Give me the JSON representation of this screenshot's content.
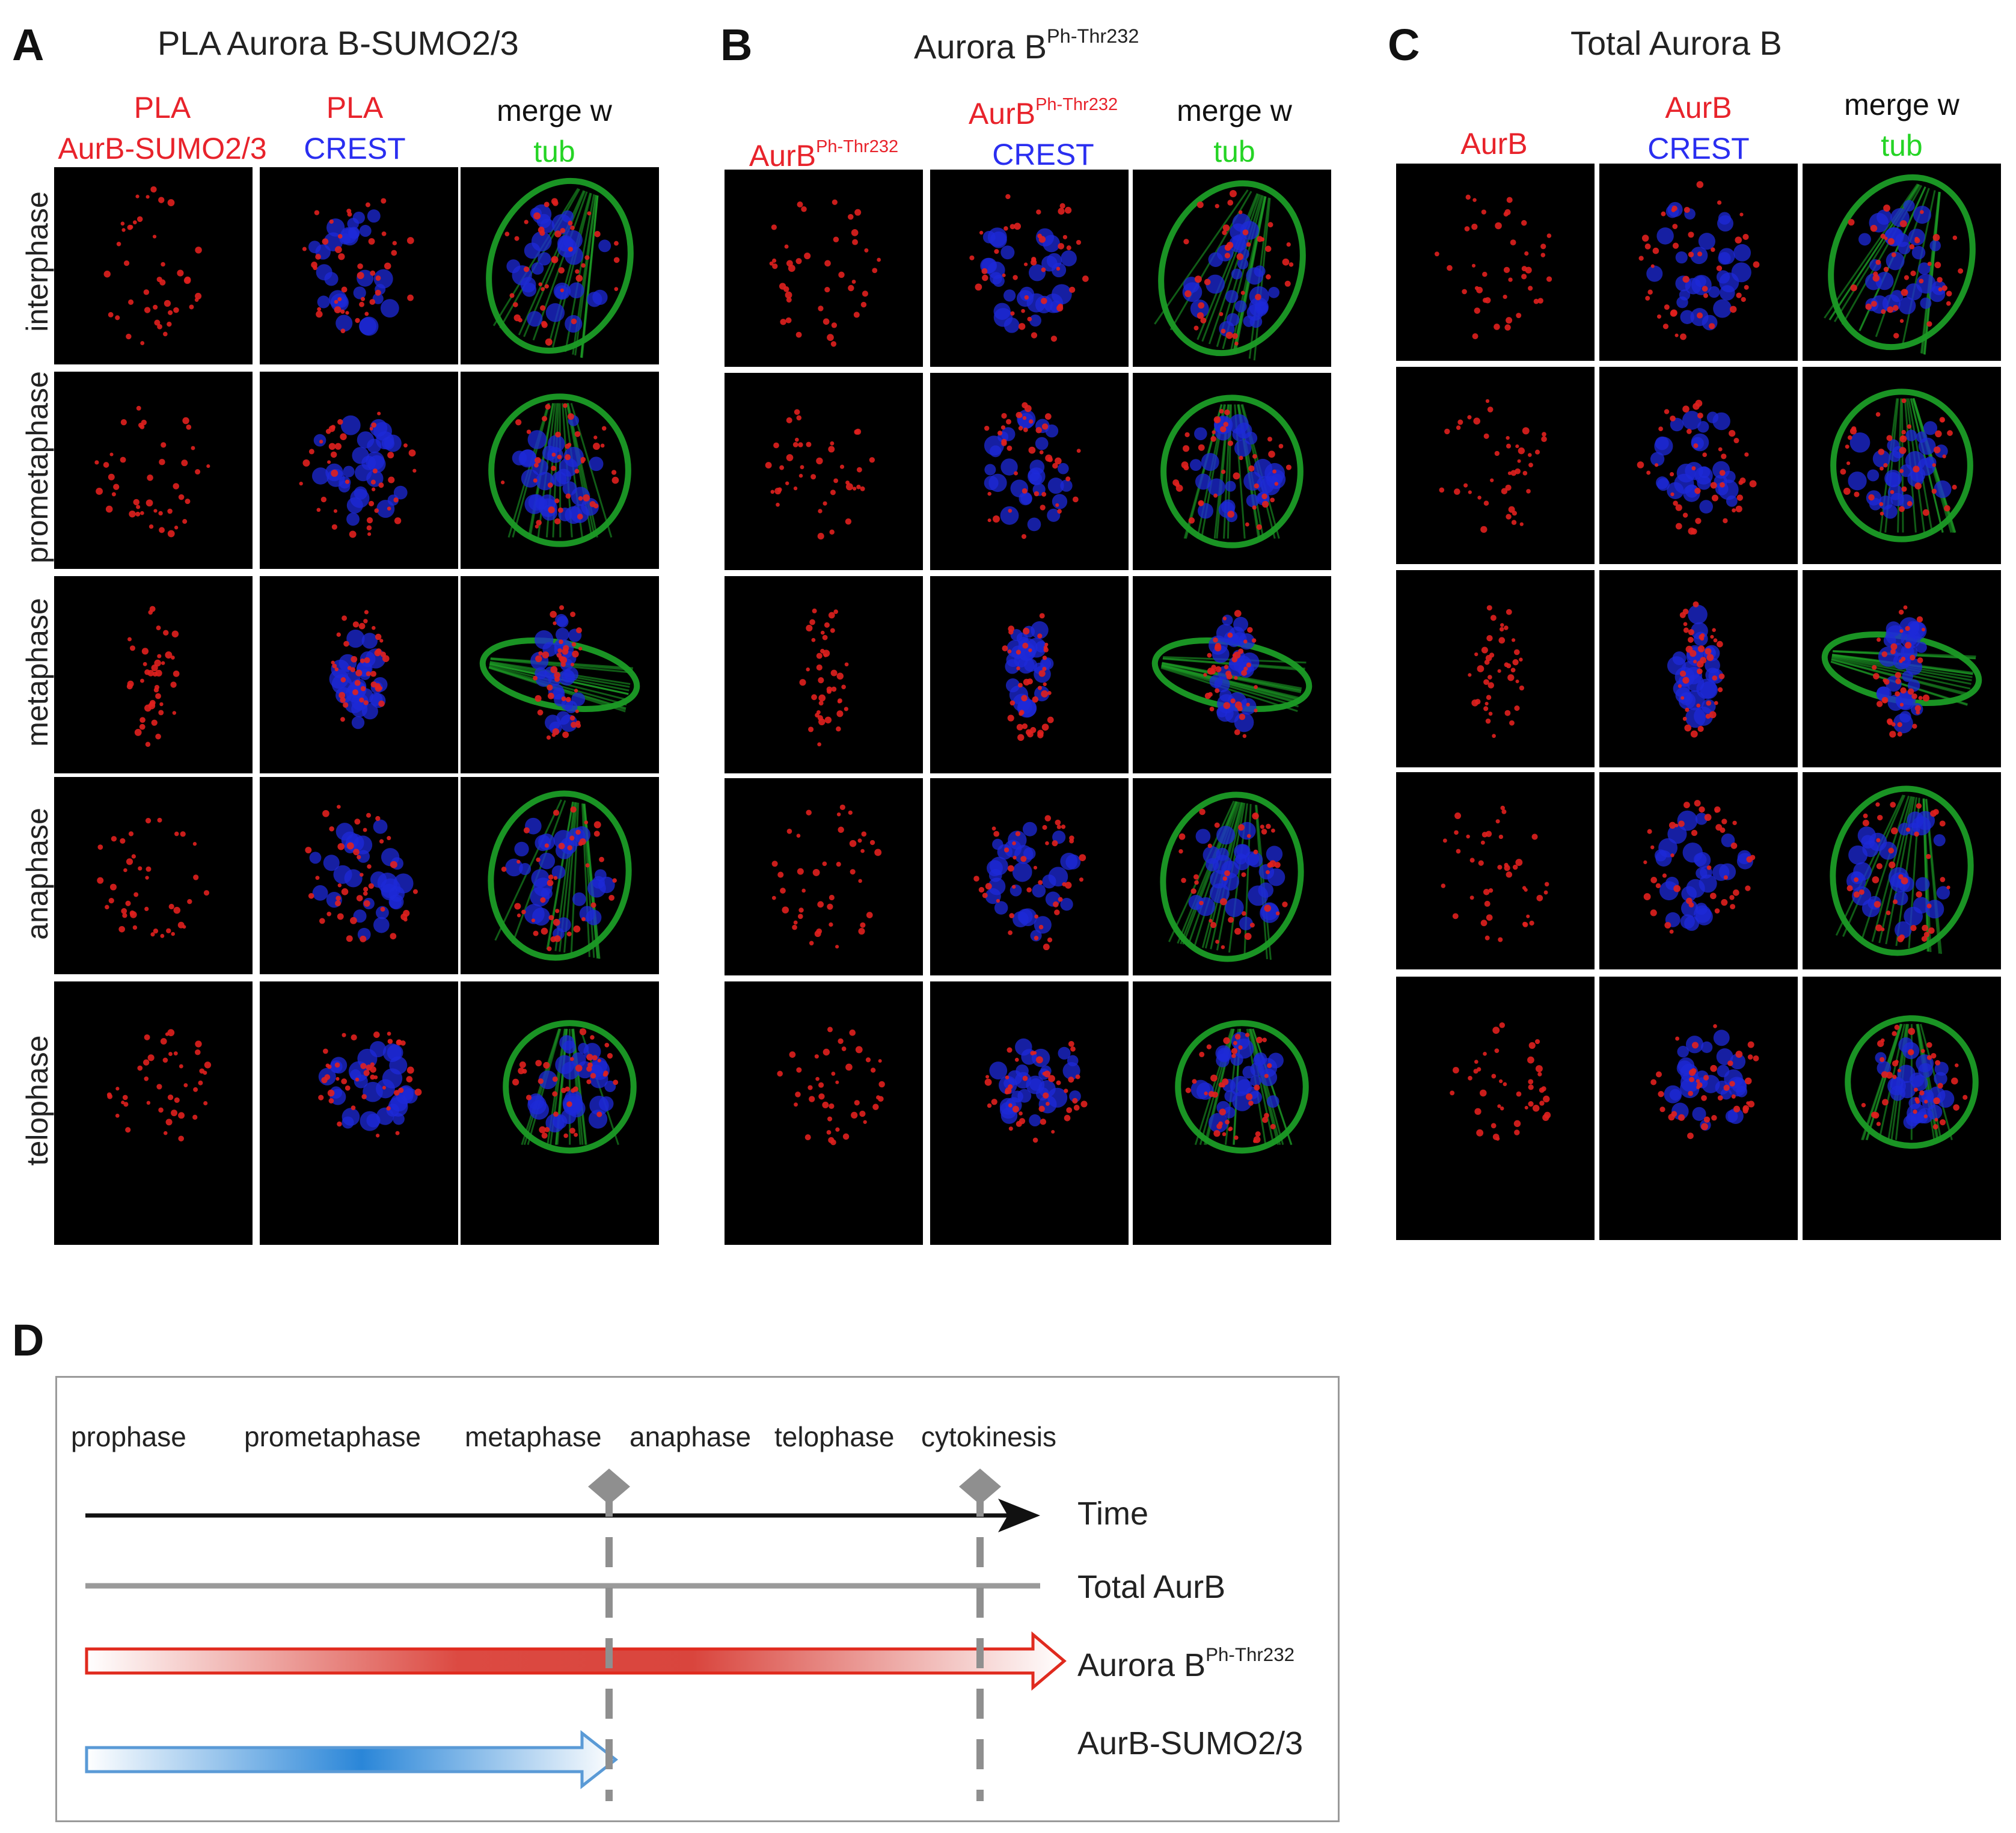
{
  "panels": {
    "A": {
      "letter": "A",
      "title": "PLA  Aurora B-SUMO2/3",
      "col1": {
        "l1": "PLA",
        "l2": "AurB-SUMO2/3"
      },
      "col2": {
        "l1": "PLA",
        "l2": "CREST"
      },
      "col3": {
        "l1": "merge w",
        "l2": "tub"
      }
    },
    "B": {
      "letter": "B",
      "title_main": "Aurora B",
      "title_sup": "Ph-Thr232",
      "col1": {
        "main": "AurB",
        "sup": "Ph-Thr232"
      },
      "col2": {
        "main": "AurB",
        "sup": "Ph-Thr232",
        "l2": "CREST"
      },
      "col3": {
        "l1": "merge w",
        "l2": "tub"
      }
    },
    "C": {
      "letter": "C",
      "title": "Total Aurora B",
      "col1": {
        "l1": "AurB"
      },
      "col2": {
        "l1": "AurB",
        "l2": "CREST"
      },
      "col3": {
        "l1": "merge w",
        "l2": "tub"
      }
    }
  },
  "row_labels": [
    "interphase",
    "prometaphase",
    "metaphase",
    "anaphase",
    "telophase"
  ],
  "colors": {
    "red": "#e8232b",
    "blue": "#2a2ef0",
    "green": "#25d425",
    "gray": "#8f8f8f"
  },
  "panel_D": {
    "letter": "D",
    "phases": [
      "prophase",
      "prometaphase",
      "metaphase",
      "anaphase",
      "telophase",
      "cytokinesis"
    ],
    "labels": {
      "time": "Time",
      "total": "Total AurB",
      "phospho_main": "Aurora B",
      "phospho_sup": "Ph-Thr232",
      "sumo": "AurB-SUMO2/3"
    }
  }
}
